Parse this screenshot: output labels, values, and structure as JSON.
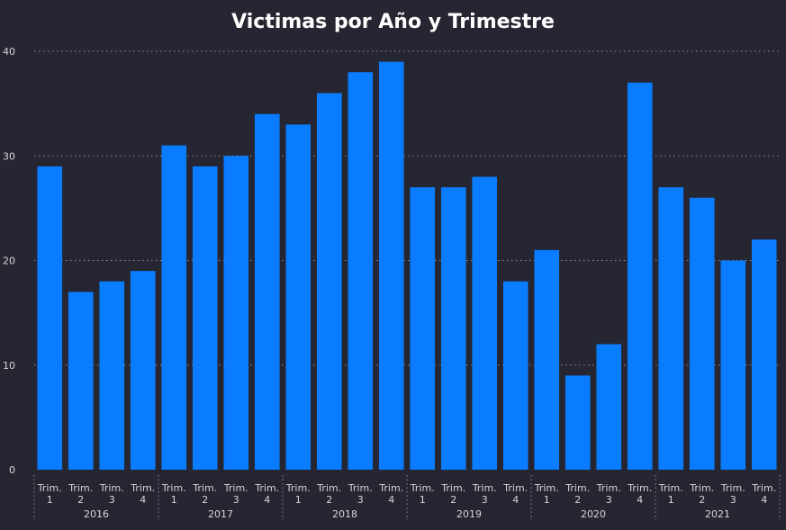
{
  "chart_data": {
    "type": "bar",
    "title": "Victimas por Año y Trimestre",
    "xlabel": "",
    "ylabel": "",
    "ylim": [
      0,
      40
    ],
    "yticks": [
      0,
      10,
      20,
      30,
      40
    ],
    "grid": true,
    "bar_color": "#0a7cff",
    "groups": [
      {
        "year": "2016",
        "quarters": [
          "Trim. 1",
          "Trim. 2",
          "Trim. 3",
          "Trim. 4"
        ],
        "values": [
          29,
          17,
          18,
          19
        ]
      },
      {
        "year": "2017",
        "quarters": [
          "Trim. 1",
          "Trim. 2",
          "Trim. 3",
          "Trim. 4"
        ],
        "values": [
          31,
          29,
          30,
          34
        ]
      },
      {
        "year": "2018",
        "quarters": [
          "Trim. 1",
          "Trim. 2",
          "Trim. 3",
          "Trim. 4"
        ],
        "values": [
          33,
          36,
          38,
          39
        ]
      },
      {
        "year": "2019",
        "quarters": [
          "Trim. 1",
          "Trim. 2",
          "Trim. 3",
          "Trim. 4"
        ],
        "values": [
          27,
          27,
          28,
          18
        ]
      },
      {
        "year": "2020",
        "quarters": [
          "Trim. 1",
          "Trim. 2",
          "Trim. 3",
          "Trim. 4"
        ],
        "values": [
          21,
          9,
          12,
          37
        ]
      },
      {
        "year": "2021",
        "quarters": [
          "Trim. 1",
          "Trim. 2",
          "Trim. 3",
          "Trim. 4"
        ],
        "values": [
          27,
          26,
          20,
          22
        ]
      }
    ]
  }
}
